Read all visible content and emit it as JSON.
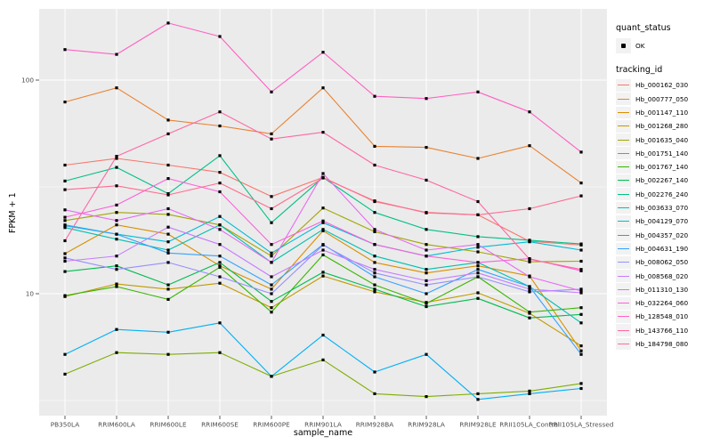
{
  "chart_data": {
    "type": "line",
    "title": "",
    "xlabel": "sample_name",
    "ylabel": "FPKM + 1",
    "y_scale": "log10",
    "ylim": [
      2.6,
      220
    ],
    "grid": true,
    "legend_position": "right",
    "point_marker": "small-black-square",
    "y_ticks": [
      {
        "label": "100",
        "value": 100
      },
      {
        "label": "10",
        "value": 10
      }
    ],
    "y_minor_breaks": [
      31.623,
      3.1623
    ],
    "categories": [
      "PB350LA",
      "RRIM600LA",
      "RRIM600LE",
      "RRIM600SE",
      "RRIM600PE",
      "RRIM901LA",
      "RRIM928BA",
      "RRIM928LA",
      "RRIM928LE",
      "RRII105LA_Control",
      "RRII105LA_Stressed"
    ],
    "legend": {
      "quant_status": {
        "title": "quant_status",
        "items": [
          {
            "label": "OK",
            "marker": "black-point"
          }
        ]
      },
      "tracking_id": {
        "title": "tracking_id"
      }
    },
    "series": [
      {
        "name": "Hb_000162_030",
        "color": "#F8766D",
        "values": [
          40,
          43,
          40,
          37,
          28.5,
          35,
          27,
          24,
          23.4,
          17.6,
          16.9
        ]
      },
      {
        "name": "Hb_000777_050",
        "color": "#EA8331",
        "values": [
          79,
          92,
          65,
          61,
          56,
          92,
          49,
          48.4,
          43,
          49.3,
          33
        ]
      },
      {
        "name": "Hb_001147_110",
        "color": "#D89000",
        "values": [
          15.4,
          21,
          19,
          13.5,
          10.5,
          19.7,
          14,
          12.5,
          13.5,
          12.1,
          5.4
        ]
      },
      {
        "name": "Hb_001268_280",
        "color": "#C09B00",
        "values": [
          9.7,
          11.1,
          10.5,
          11.2,
          8.6,
          12.1,
          10.2,
          9.1,
          10.1,
          8.1,
          5.7
        ]
      },
      {
        "name": "Hb_001635_040",
        "color": "#A3A500",
        "values": [
          22,
          24,
          23.5,
          21,
          15,
          25.2,
          19.5,
          17,
          15.7,
          14.1,
          14.2
        ]
      },
      {
        "name": "Hb_001751_140",
        "color": "#7CAE00",
        "values": [
          4.2,
          5.3,
          5.2,
          5.3,
          4.1,
          4.9,
          3.4,
          3.3,
          3.4,
          3.5,
          3.8
        ]
      },
      {
        "name": "Hb_001767_140",
        "color": "#39B600",
        "values": [
          9.8,
          10.8,
          9.4,
          13.3,
          8.2,
          15.2,
          11,
          9,
          12,
          8.2,
          8.6
        ]
      },
      {
        "name": "Hb_002267_140",
        "color": "#00BB4E",
        "values": [
          12.7,
          13.5,
          11,
          14,
          9.2,
          12.6,
          10.5,
          8.7,
          9.5,
          7.7,
          8
        ]
      },
      {
        "name": "Hb_002276_240",
        "color": "#00C087",
        "values": [
          33.7,
          39,
          29.4,
          44.3,
          21.5,
          35,
          24,
          20,
          18.5,
          17.8,
          17.1
        ]
      },
      {
        "name": "Hb_003633_070",
        "color": "#00C0AF",
        "values": [
          20.4,
          18,
          16,
          21,
          14,
          20,
          15,
          13,
          14,
          10.8,
          7.3
        ]
      },
      {
        "name": "Hb_004129_070",
        "color": "#00BCD8",
        "values": [
          21,
          19,
          17.5,
          23,
          15.5,
          21.5,
          17,
          15,
          16.5,
          17.5,
          16
        ]
      },
      {
        "name": "Hb_004357_020",
        "color": "#00B0F6",
        "values": [
          5.2,
          6.8,
          6.6,
          7.3,
          4.1,
          6.4,
          4.3,
          5.2,
          3.2,
          3.4,
          3.6
        ]
      },
      {
        "name": "Hb_004631_190",
        "color": "#35A2FF",
        "values": [
          20.8,
          19,
          15.5,
          15,
          11,
          17,
          12,
          10,
          13,
          10.8,
          5.2
        ]
      },
      {
        "name": "Hb_008062_050",
        "color": "#9590FF",
        "values": [
          14.7,
          13,
          14,
          12,
          10,
          16.9,
          12.5,
          11,
          12,
          10.2,
          10.5
        ]
      },
      {
        "name": "Hb_008568_020",
        "color": "#C77CFF",
        "values": [
          14.2,
          15,
          20.5,
          17,
          12,
          16,
          13,
          11.5,
          12.5,
          10.5,
          10.1
        ]
      },
      {
        "name": "Hb_011310_130",
        "color": "#E76BF3",
        "values": [
          24.7,
          22,
          25,
          20,
          14,
          36.5,
          20,
          16,
          17,
          12,
          10.3
        ]
      },
      {
        "name": "Hb_032264_060",
        "color": "#FA62DB",
        "values": [
          22.8,
          26,
          34.6,
          30,
          17,
          21.9,
          17,
          15,
          14,
          14.6,
          12.8
        ]
      },
      {
        "name": "Hb_128548_010",
        "color": "#FF61C3",
        "values": [
          139,
          132,
          185,
          160,
          88,
          135,
          84,
          82,
          88,
          71,
          46
        ]
      },
      {
        "name": "Hb_143766_110",
        "color": "#FF67A4",
        "values": [
          17.7,
          44,
          56,
          71,
          53,
          57,
          40,
          34,
          27,
          14.5,
          13
        ]
      },
      {
        "name": "Hb_184798_080",
        "color": "#FF6C90",
        "values": [
          30.7,
          32,
          29,
          33,
          25,
          34.8,
          27.2,
          23.9,
          23.4,
          25,
          28.7
        ]
      }
    ]
  },
  "ui_colors": {
    "background": "#FFFFFF",
    "panel_bg": "#EBEBEB",
    "grid_major": "#FFFFFF",
    "grid_minor": "#FFFFFF",
    "tick_mark": "#333333",
    "tick_label": "#4D4D4D",
    "axis_title": "#000000",
    "legend_key_bg": "#F2F2F2",
    "marker": "#000000"
  }
}
